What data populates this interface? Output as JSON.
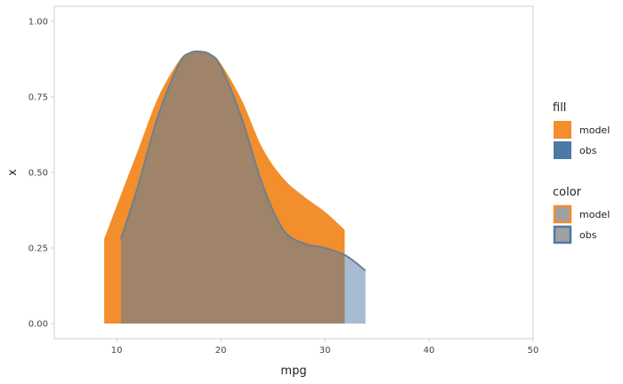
{
  "chart_data": {
    "type": "area",
    "xlabel": "mpg",
    "ylabel": "x",
    "xlim": [
      4,
      50
    ],
    "ylim": [
      -0.05,
      1.05
    ],
    "x_ticks": [
      10,
      20,
      30,
      40,
      50
    ],
    "x_tick_labels": [
      "10",
      "20",
      "30",
      "40",
      "50"
    ],
    "y_ticks": [
      0,
      0.25,
      0.5,
      0.75,
      1.0
    ],
    "y_tick_labels": [
      "0.00",
      "0.25",
      "0.50",
      "0.75",
      "1.00"
    ],
    "grid": false,
    "legend_placement": "right",
    "series": [
      {
        "name": "model",
        "fill": "#f28e2b",
        "stroke": "#f28e2b",
        "x": [
          8.8,
          10,
          12,
          14,
          16,
          17,
          18,
          19,
          20,
          22,
          24,
          26,
          28,
          30,
          31.9
        ],
        "y": [
          0.28,
          0.39,
          0.57,
          0.75,
          0.87,
          0.895,
          0.9,
          0.89,
          0.86,
          0.74,
          0.58,
          0.48,
          0.42,
          0.37,
          0.31
        ]
      },
      {
        "name": "obs",
        "fill": "#4e79a7",
        "stroke": "#6e7f90",
        "x": [
          10.4,
          12,
          14,
          16,
          17,
          18,
          19,
          20,
          22,
          24,
          26,
          28,
          30,
          32,
          33.9
        ],
        "y": [
          0.28,
          0.45,
          0.69,
          0.86,
          0.895,
          0.9,
          0.89,
          0.85,
          0.68,
          0.46,
          0.31,
          0.265,
          0.25,
          0.225,
          0.175
        ]
      }
    ],
    "legend": {
      "fill": {
        "title": "fill",
        "items": [
          {
            "label": "model",
            "color": "#f28e2b"
          },
          {
            "label": "obs",
            "color": "#4e79a7"
          }
        ]
      },
      "color": {
        "title": "color",
        "items": [
          {
            "label": "model",
            "color": "#f28e2b"
          },
          {
            "label": "obs",
            "color": "#4e79a7"
          }
        ]
      }
    }
  }
}
